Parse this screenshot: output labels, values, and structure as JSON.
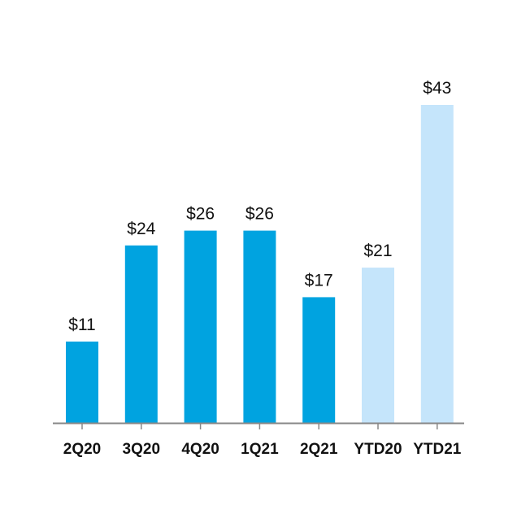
{
  "chart_data": {
    "type": "bar",
    "categories": [
      "2Q20",
      "3Q20",
      "4Q20",
      "1Q21",
      "2Q21",
      "YTD20",
      "YTD21"
    ],
    "values": [
      11,
      24,
      26,
      26,
      17,
      21,
      43
    ],
    "value_labels": [
      "$11",
      "$24",
      "$26",
      "$26",
      "$17",
      "$21",
      "$43"
    ],
    "bar_colors": [
      "#00a3e0",
      "#00a3e0",
      "#00a3e0",
      "#00a3e0",
      "#00a3e0",
      "#c5e5fb",
      "#c5e5fb"
    ],
    "title": "",
    "xlabel": "",
    "ylabel": "",
    "ylim": [
      0,
      43
    ],
    "grid": false,
    "axis_color": "#888888"
  }
}
